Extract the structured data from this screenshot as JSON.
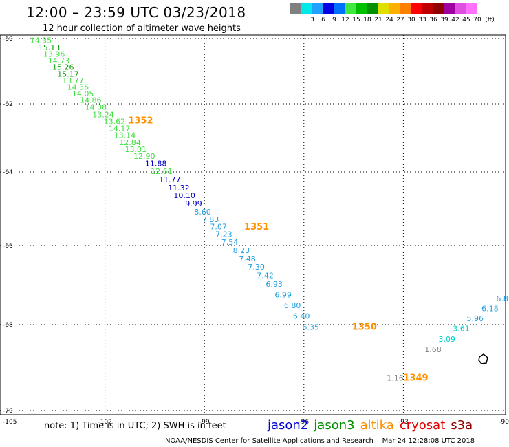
{
  "header": {
    "title": "12:00 – 23:59 UTC 03/23/2018",
    "subtitle": "12 hour collection of altimeter wave heights"
  },
  "color_scale": {
    "unit": "(ft)",
    "colors": [
      "#808080",
      "#00e8e8",
      "#20a0ff",
      "#0000e0",
      "#0070ff",
      "#40e840",
      "#00c000",
      "#009000",
      "#e0e000",
      "#ffb000",
      "#ff8000",
      "#ff0000",
      "#c00000",
      "#900000",
      "#a000a0",
      "#e050e0",
      "#ff70ff",
      "#ffffff"
    ],
    "labels": [
      "",
      "3",
      "6",
      "9",
      "12",
      "15",
      "18",
      "21",
      "24",
      "27",
      "30",
      "33",
      "36",
      "39",
      "42",
      "45",
      "70",
      ""
    ]
  },
  "map": {
    "lon_ticks": [
      "-102",
      "-99",
      "-96",
      "-93"
    ],
    "corner_labels": [
      "-105",
      "-90"
    ],
    "lat_ticks": [
      "-60",
      "-62",
      "-64",
      "-66",
      "-68",
      "-70"
    ]
  },
  "observations": [
    {
      "text": "14.35",
      "lon": -104.26,
      "lat": -60.14,
      "color": "#40e040"
    },
    {
      "text": "15.13",
      "lon": -104.01,
      "lat": -60.36,
      "color": "#00a000"
    },
    {
      "text": "13.96",
      "lon": -103.86,
      "lat": -60.56,
      "color": "#40e040"
    },
    {
      "text": "14.73",
      "lon": -103.72,
      "lat": -60.76,
      "color": "#40e040"
    },
    {
      "text": "15.26",
      "lon": -103.59,
      "lat": -60.96,
      "color": "#00a000"
    },
    {
      "text": "15.17",
      "lon": -103.44,
      "lat": -61.17,
      "color": "#00a000"
    },
    {
      "text": "13.77",
      "lon": -103.29,
      "lat": -61.37,
      "color": "#40e040"
    },
    {
      "text": "14.36",
      "lon": -103.14,
      "lat": -61.57,
      "color": "#40e040"
    },
    {
      "text": "14.05",
      "lon": -102.99,
      "lat": -61.77,
      "color": "#40e040"
    },
    {
      "text": "14.86",
      "lon": -102.76,
      "lat": -61.97,
      "color": "#40e040"
    },
    {
      "text": "14.08",
      "lon": -102.6,
      "lat": -62.17,
      "color": "#40e040"
    },
    {
      "text": "13.24",
      "lon": -102.38,
      "lat": -62.39,
      "color": "#40e040"
    },
    {
      "text": "13.62",
      "lon": -102.04,
      "lat": -62.6,
      "color": "#40e040"
    },
    {
      "text": "14.17",
      "lon": -101.89,
      "lat": -62.8,
      "color": "#40e040"
    },
    {
      "text": "13.14",
      "lon": -101.73,
      "lat": -63.0,
      "color": "#40e040"
    },
    {
      "text": "12.84",
      "lon": -101.57,
      "lat": -63.21,
      "color": "#40e040"
    },
    {
      "text": "13.01",
      "lon": -101.4,
      "lat": -63.41,
      "color": "#40e040"
    },
    {
      "text": "12.90",
      "lon": -101.14,
      "lat": -63.62,
      "color": "#40e040"
    },
    {
      "text": "11.88",
      "lon": -100.79,
      "lat": -63.83,
      "color": "#0000c0"
    },
    {
      "text": "12.61",
      "lon": -100.62,
      "lat": -64.06,
      "color": "#40e040"
    },
    {
      "text": "11.77",
      "lon": -100.37,
      "lat": -64.28,
      "color": "#0000c0"
    },
    {
      "text": "11.32",
      "lon": -100.1,
      "lat": -64.5,
      "color": "#0000c0"
    },
    {
      "text": "10.10",
      "lon": -99.93,
      "lat": -64.71,
      "color": "#0000c0"
    },
    {
      "text": "9.99",
      "lon": -99.58,
      "lat": -64.93,
      "color": "#0000c0"
    },
    {
      "text": "8.60",
      "lon": -99.31,
      "lat": -65.16,
      "color": "#20a0e0"
    },
    {
      "text": "7.83",
      "lon": -99.07,
      "lat": -65.36,
      "color": "#20a0e0"
    },
    {
      "text": "7.07",
      "lon": -98.83,
      "lat": -65.56,
      "color": "#20a0e0"
    },
    {
      "text": "7.23",
      "lon": -98.67,
      "lat": -65.77,
      "color": "#20a0e0"
    },
    {
      "text": "7.54",
      "lon": -98.49,
      "lat": -65.98,
      "color": "#20a0e0"
    },
    {
      "text": "8.23",
      "lon": -98.14,
      "lat": -66.19,
      "color": "#20a0e0"
    },
    {
      "text": "7.48",
      "lon": -97.96,
      "lat": -66.4,
      "color": "#20a0e0"
    },
    {
      "text": "7.30",
      "lon": -97.69,
      "lat": -66.61,
      "color": "#20a0e0"
    },
    {
      "text": "7.42",
      "lon": -97.42,
      "lat": -66.83,
      "color": "#20a0e0"
    },
    {
      "text": "6.93",
      "lon": -97.15,
      "lat": -67.04,
      "color": "#20a0e0"
    },
    {
      "text": "6.99",
      "lon": -96.88,
      "lat": -67.31,
      "color": "#20a0e0"
    },
    {
      "text": "6.80",
      "lon": -96.6,
      "lat": -67.58,
      "color": "#20a0e0"
    },
    {
      "text": "6.40",
      "lon": -96.33,
      "lat": -67.85,
      "color": "#20a0e0"
    },
    {
      "text": "6.35",
      "lon": -96.05,
      "lat": -68.12,
      "color": "#20a0e0"
    },
    {
      "text": "6.8",
      "lon": -90.2,
      "lat": -67.41,
      "color": "#20a0e0"
    },
    {
      "text": "6.18",
      "lon": -90.64,
      "lat": -67.66,
      "color": "#20a0e0"
    },
    {
      "text": "5.96",
      "lon": -91.09,
      "lat": -67.91,
      "color": "#20a0e0"
    },
    {
      "text": "3.61",
      "lon": -91.51,
      "lat": -68.15,
      "color": "#00d0d0"
    },
    {
      "text": "3.09",
      "lon": -91.94,
      "lat": -68.4,
      "color": "#00d0d0"
    },
    {
      "text": "1.68",
      "lon": -92.36,
      "lat": -68.64,
      "color": "#808080"
    },
    {
      "text": "1.16",
      "lon": -93.5,
      "lat": -69.3,
      "color": "#808080"
    }
  ],
  "pass_times": [
    {
      "text": "1352",
      "lon": -101.3,
      "lat": -62.58
    },
    {
      "text": "1351",
      "lon": -97.8,
      "lat": -65.57
    },
    {
      "text": "1350",
      "lon": -94.55,
      "lat": -68.12
    },
    {
      "text": "1349",
      "lon": -93.0,
      "lat": -69.3
    }
  ],
  "footer": {
    "note": "note: 1) Time is in UTC; 2) SWH is in feet",
    "satellites": [
      {
        "name": "jason2",
        "color": "#0000d0"
      },
      {
        "name": "jason3",
        "color": "#009000"
      },
      {
        "name": "altika",
        "color": "#ff9000"
      },
      {
        "name": "cryosat",
        "color": "#e00000"
      },
      {
        "name": "s3a",
        "color": "#900000"
      }
    ],
    "credit": "NOAA/NESDIS Center for Satellite Applications and Research    Mar 24 12:28:08 UTC 2018"
  }
}
